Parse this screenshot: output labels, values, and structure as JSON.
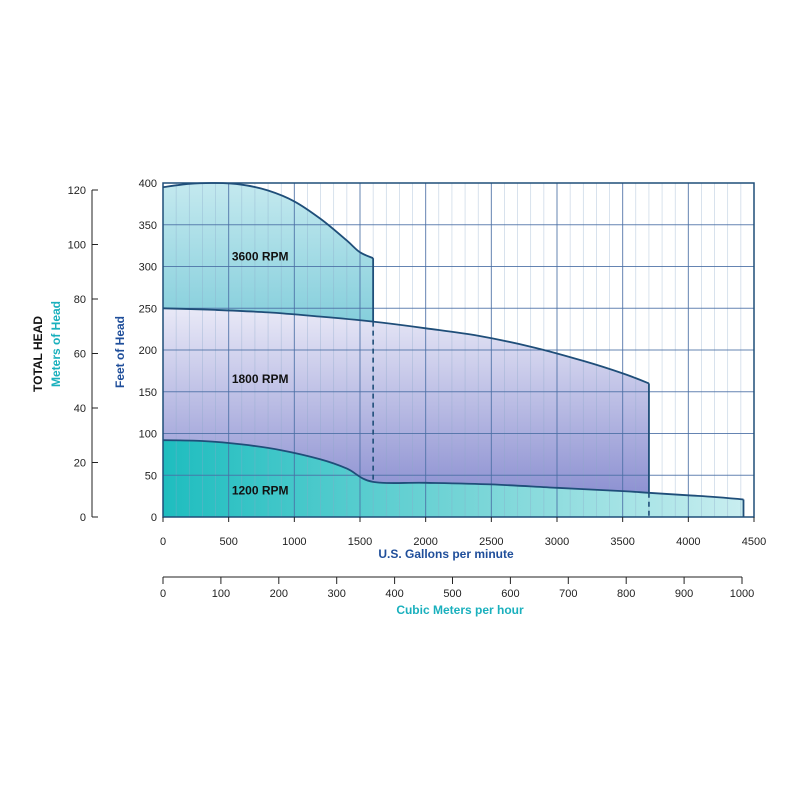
{
  "chart_data": {
    "type": "area",
    "title": "",
    "y_axis_label": "TOTAL HEAD",
    "colors": {
      "frame": "#1f4e79",
      "grid_major": "#4a6fa5",
      "grid_minor": "#8aa8c8",
      "rpm3600_fill": "#a6dbe4",
      "rpm1800_fill": "#9b9ed6",
      "rpm1200_fill": "#34c2c4",
      "meters_text": "#1ab0bd",
      "feet_text": "#1f4e9a",
      "gpm_text": "#1f4e9a",
      "m3h_text": "#1ab0bd"
    },
    "x_primary": {
      "label": "U.S. Gallons per minute",
      "min": 0,
      "max": 4500,
      "ticks": [
        0,
        500,
        1000,
        1500,
        2000,
        2500,
        3000,
        3500,
        4000,
        4500
      ],
      "minor_step": 100
    },
    "x_secondary": {
      "label": "Cubic Meters per hour",
      "min": 0,
      "max": 1000,
      "ticks": [
        0,
        100,
        200,
        300,
        400,
        500,
        600,
        700,
        800,
        900,
        1000
      ]
    },
    "y_primary": {
      "label": "Feet of Head",
      "min": 0,
      "max": 400,
      "ticks": [
        0,
        50,
        100,
        150,
        200,
        250,
        300,
        350,
        400
      ]
    },
    "y_secondary": {
      "label": "Meters of Head",
      "min": 0,
      "max": 120,
      "ticks": [
        0,
        20,
        40,
        60,
        80,
        100,
        120
      ]
    },
    "series": [
      {
        "name": "3600 RPM",
        "label_at": [
          740,
          312
        ],
        "upper": [
          [
            0,
            395
          ],
          [
            200,
            399
          ],
          [
            400,
            400
          ],
          [
            600,
            398
          ],
          [
            800,
            391
          ],
          [
            1000,
            378
          ],
          [
            1200,
            357
          ],
          [
            1400,
            331
          ],
          [
            1500,
            317
          ],
          [
            1600,
            310
          ]
        ],
        "lower": [
          [
            0,
            250
          ],
          [
            400,
            248
          ],
          [
            800,
            245
          ],
          [
            1200,
            240
          ],
          [
            1600,
            234
          ]
        ],
        "end_x": 1600
      },
      {
        "name": "1800 RPM",
        "label_at": [
          740,
          165
        ],
        "upper": [
          [
            0,
            250
          ],
          [
            400,
            248
          ],
          [
            800,
            245
          ],
          [
            1200,
            240
          ],
          [
            1600,
            234
          ],
          [
            2000,
            226
          ],
          [
            2400,
            217
          ],
          [
            2800,
            204
          ],
          [
            3200,
            187
          ],
          [
            3500,
            172
          ],
          [
            3700,
            160
          ]
        ],
        "lower": [
          [
            0,
            92
          ],
          [
            300,
            91
          ],
          [
            600,
            87
          ],
          [
            900,
            80
          ],
          [
            1200,
            69
          ],
          [
            1400,
            58
          ],
          [
            1600,
            42
          ],
          [
            2000,
            41
          ],
          [
            2500,
            39
          ],
          [
            3000,
            35
          ],
          [
            3500,
            31
          ],
          [
            3700,
            29
          ]
        ],
        "end_x": 3700
      },
      {
        "name": "1200 RPM",
        "label_at": [
          740,
          32
        ],
        "upper": [
          [
            0,
            92
          ],
          [
            300,
            91
          ],
          [
            600,
            87
          ],
          [
            900,
            80
          ],
          [
            1200,
            69
          ],
          [
            1400,
            58
          ],
          [
            1600,
            42
          ],
          [
            2000,
            41
          ],
          [
            2500,
            39
          ],
          [
            3000,
            35
          ],
          [
            3500,
            31
          ],
          [
            3700,
            29
          ],
          [
            4000,
            26
          ],
          [
            4200,
            24
          ],
          [
            4420,
            21
          ]
        ],
        "lower": [
          [
            0,
            0
          ],
          [
            4420,
            0
          ]
        ],
        "end_x": 4420
      }
    ],
    "dashed_drops": [
      {
        "x": 1600,
        "from": 234,
        "to": 42
      },
      {
        "x": 3700,
        "from": 29,
        "to": 0
      }
    ]
  }
}
